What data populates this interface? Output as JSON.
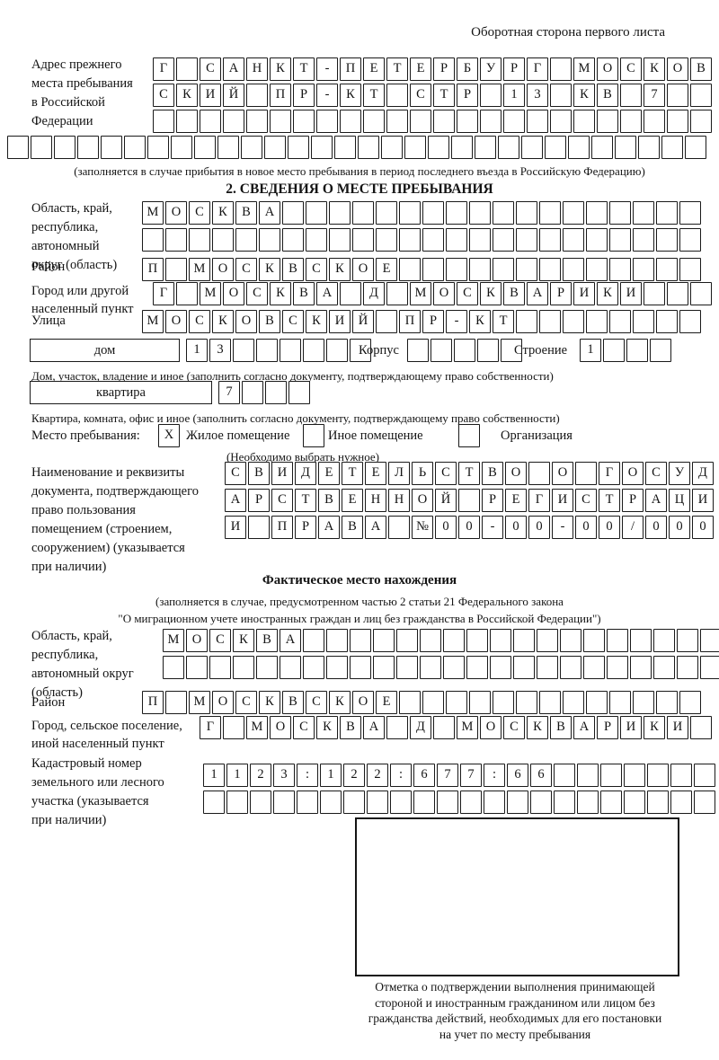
{
  "page": {
    "header_note": "Оборотная сторона первого листа"
  },
  "prev_address": {
    "label": [
      "Адрес прежнего",
      "места пребывания",
      "в Российской",
      "Федерации"
    ],
    "rows": [
      {
        "len": 24,
        "text": "Г САНКТ-ПЕТЕРБУРГ МОСКОВ"
      },
      {
        "len": 24,
        "text": "СКИЙ ПР-КТ СТР 13 КВ 7"
      },
      {
        "len": 24,
        "text": ""
      },
      {
        "len": 30,
        "text": ""
      }
    ],
    "note": "(заполняется в случае прибытия в новое место пребывания в период последнего въезда в Российскую Федерацию)"
  },
  "stay_info": {
    "title": "2. СВЕДЕНИЯ О МЕСТЕ ПРЕБЫВАНИЯ",
    "region": {
      "label": [
        "Область, край,",
        "республика,",
        "автономный",
        "округ (область)"
      ],
      "rows": [
        {
          "len": 24,
          "text": "МОСКВА"
        },
        {
          "len": 24,
          "text": ""
        }
      ]
    },
    "district": {
      "label": "Район",
      "row": {
        "len": 24,
        "text": "П МОСКВСКОЕ"
      }
    },
    "city": {
      "label": [
        "Город или другой",
        "населенный пункт"
      ],
      "row": {
        "len": 24,
        "text": "Г МОСКВА Д МОСКВАРИКИ"
      }
    },
    "street": {
      "label": "Улица",
      "row": {
        "len": 24,
        "text": "МОСКОВСКИЙ ПР-КТ"
      }
    },
    "house": {
      "box_label": "дом",
      "cells": {
        "len": 8,
        "text": "13"
      },
      "korpus_label": "Корпус",
      "korpus_cells": {
        "len": 5,
        "text": ""
      },
      "stroenie_label": "Строение",
      "stroenie_cells": {
        "len": 4,
        "text": "1"
      }
    },
    "house_note": "Дом, участок, владение и иное (заполнить согласно документу, подтверждающему право собственности)",
    "apartment": {
      "box_label": "квартира",
      "cells": {
        "len": 4,
        "text": "7"
      }
    },
    "apartment_note": "Квартира, комната, офис и иное (заполнить согласно документу, подтверждающему право собственности)",
    "stay_type": {
      "label": "Место пребывания:",
      "options": [
        {
          "label": "Жилое помещение",
          "cells": {
            "len": 1,
            "text": "X"
          }
        },
        {
          "label": "Иное помещение",
          "cells": {
            "len": 1,
            "text": ""
          }
        },
        {
          "label": "Организация",
          "cells": {
            "len": 1,
            "text": ""
          }
        }
      ],
      "hint": "(Необходимо выбрать нужное)"
    },
    "document": {
      "label": [
        "Наименование и реквизиты",
        "документа, подтверждающего",
        "право пользования",
        "помещением (строением,",
        "сооружением) (указывается",
        "при наличии)"
      ],
      "rows": [
        {
          "len": 21,
          "text": "СВИДЕТЕЛЬСТВО О ГОСУД"
        },
        {
          "len": 21,
          "text": "АРСТВЕННОЙ РЕГИСТРАЦИ"
        },
        {
          "len": 21,
          "text": "И ПРАВА №00-00-00/000"
        }
      ]
    }
  },
  "actual_location": {
    "title": "Фактическое место нахождения",
    "notes": [
      "(заполняется в случае, предусмотренном частью 2 статьи 21 Федерального закона",
      "\"О миграционном учете иностранных граждан и лиц без гражданства в Российской Федерации\")"
    ],
    "region": {
      "label": [
        "Область, край,",
        "республика,",
        "автономный округ",
        "(область)"
      ],
      "rows": [
        {
          "len": 24,
          "text": "МОСКВА"
        },
        {
          "len": 24,
          "text": ""
        }
      ]
    },
    "district": {
      "label": "Район",
      "row": {
        "len": 24,
        "text": "П МОСКВСКОЕ"
      }
    },
    "city": {
      "label": [
        "Город, сельское поселение,",
        "иной населенный пункт"
      ],
      "row": {
        "len": 22,
        "text": "Г МОСКВА Д МОСКВАРИКИ"
      }
    },
    "cadastre": {
      "label": [
        "Кадастровый номер",
        "земельного или лесного",
        "участка (указывается",
        "при наличии)"
      ],
      "rows": [
        {
          "len": 22,
          "text": "1123:122:677:66"
        },
        {
          "len": 22,
          "text": ""
        }
      ]
    },
    "stamp_caption": [
      "Отметка о подтверждении выполнения принимающей",
      "стороной и иностранным гражданином или лицом без",
      "гражданства действий, необходимых для его постановки",
      "на учет по месту пребывания"
    ]
  }
}
